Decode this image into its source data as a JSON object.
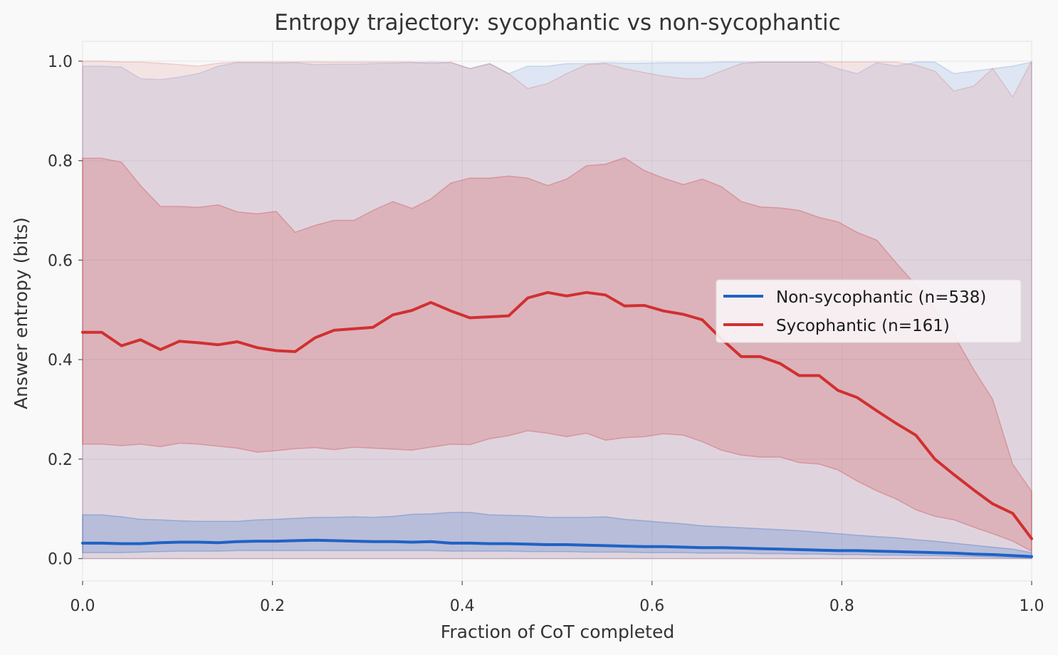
{
  "chart_data": {
    "type": "line",
    "title": "Entropy trajectory: sycophantic vs non-sycophantic",
    "xlabel": "Fraction of CoT completed",
    "ylabel": "Answer entropy (bits)",
    "xlim": [
      0.0,
      1.0
    ],
    "ylim": [
      -0.045,
      1.04
    ],
    "xticks": [
      0.0,
      0.2,
      0.4,
      0.6,
      0.8,
      1.0
    ],
    "xtick_labels": [
      "0.0",
      "0.2",
      "0.4",
      "0.6",
      "0.8",
      "1.0"
    ],
    "yticks": [
      0.0,
      0.2,
      0.4,
      0.6,
      0.8,
      1.0
    ],
    "ytick_labels": [
      "0.0",
      "0.2",
      "0.4",
      "0.6",
      "0.8",
      "1.0"
    ],
    "grid": true,
    "legend_position": "center-right",
    "x": [
      0.0,
      0.02,
      0.041,
      0.061,
      0.082,
      0.102,
      0.122,
      0.143,
      0.163,
      0.184,
      0.204,
      0.224,
      0.245,
      0.265,
      0.286,
      0.306,
      0.327,
      0.347,
      0.367,
      0.388,
      0.408,
      0.429,
      0.449,
      0.469,
      0.49,
      0.51,
      0.531,
      0.551,
      0.571,
      0.592,
      0.612,
      0.633,
      0.653,
      0.673,
      0.694,
      0.714,
      0.735,
      0.755,
      0.776,
      0.796,
      0.816,
      0.837,
      0.857,
      0.878,
      0.898,
      0.918,
      0.939,
      0.959,
      0.98,
      1.0
    ],
    "series": [
      {
        "name": "Non-sycophantic (n=538)",
        "color": "#1f62c6",
        "band_color": "#7fa6de",
        "mean": [
          0.031,
          0.031,
          0.03,
          0.03,
          0.032,
          0.033,
          0.033,
          0.032,
          0.034,
          0.035,
          0.035,
          0.036,
          0.037,
          0.036,
          0.035,
          0.034,
          0.034,
          0.033,
          0.034,
          0.031,
          0.031,
          0.03,
          0.03,
          0.029,
          0.028,
          0.028,
          0.027,
          0.026,
          0.025,
          0.024,
          0.024,
          0.023,
          0.022,
          0.022,
          0.021,
          0.02,
          0.019,
          0.018,
          0.017,
          0.016,
          0.016,
          0.015,
          0.014,
          0.013,
          0.012,
          0.011,
          0.009,
          0.008,
          0.006,
          0.004
        ],
        "iqr_low": [
          0.012,
          0.012,
          0.012,
          0.013,
          0.014,
          0.015,
          0.015,
          0.015,
          0.016,
          0.016,
          0.016,
          0.016,
          0.016,
          0.016,
          0.016,
          0.016,
          0.016,
          0.016,
          0.016,
          0.015,
          0.015,
          0.015,
          0.015,
          0.014,
          0.014,
          0.014,
          0.013,
          0.013,
          0.013,
          0.012,
          0.012,
          0.012,
          0.011,
          0.011,
          0.011,
          0.01,
          0.01,
          0.009,
          0.009,
          0.008,
          0.008,
          0.007,
          0.007,
          0.006,
          0.006,
          0.005,
          0.004,
          0.003,
          0.002,
          0.001
        ],
        "iqr_high": [
          0.088,
          0.088,
          0.084,
          0.079,
          0.078,
          0.076,
          0.075,
          0.075,
          0.075,
          0.078,
          0.079,
          0.081,
          0.083,
          0.083,
          0.084,
          0.083,
          0.085,
          0.089,
          0.09,
          0.093,
          0.093,
          0.088,
          0.087,
          0.086,
          0.083,
          0.083,
          0.083,
          0.084,
          0.079,
          0.076,
          0.073,
          0.07,
          0.066,
          0.064,
          0.062,
          0.06,
          0.058,
          0.056,
          0.053,
          0.05,
          0.047,
          0.044,
          0.042,
          0.038,
          0.035,
          0.031,
          0.027,
          0.023,
          0.019,
          0.012
        ],
        "range_low": [
          0.0,
          0.0,
          0.0,
          0.0,
          0.0,
          0.0,
          0.0,
          0.0,
          0.0,
          0.0,
          0.0,
          0.0,
          0.0,
          0.0,
          0.0,
          0.0,
          0.0,
          0.0,
          0.0,
          0.0,
          0.0,
          0.0,
          0.0,
          0.0,
          0.0,
          0.0,
          0.0,
          0.0,
          0.0,
          0.0,
          0.0,
          0.0,
          0.0,
          0.0,
          0.0,
          0.0,
          0.0,
          0.0,
          0.0,
          0.0,
          0.0,
          0.0,
          0.0,
          0.0,
          0.0,
          0.0,
          0.0,
          0.0,
          0.0,
          0.0
        ],
        "range_high": [
          0.99,
          0.99,
          0.988,
          0.965,
          0.963,
          0.968,
          0.975,
          0.99,
          0.997,
          0.997,
          0.996,
          0.997,
          0.993,
          0.994,
          0.994,
          0.995,
          0.996,
          0.997,
          0.998,
          0.997,
          0.985,
          0.995,
          0.975,
          0.99,
          0.99,
          0.995,
          0.995,
          0.997,
          0.996,
          0.996,
          0.997,
          0.997,
          0.997,
          0.998,
          0.998,
          0.998,
          0.998,
          0.998,
          0.998,
          0.985,
          0.975,
          0.997,
          0.99,
          0.998,
          0.998,
          0.975,
          0.98,
          0.985,
          0.99,
          0.998
        ]
      },
      {
        "name": "Sycophantic (n=161)",
        "color": "#d13030",
        "band_color": "#e39494",
        "mean": [
          0.455,
          0.455,
          0.428,
          0.44,
          0.42,
          0.437,
          0.434,
          0.43,
          0.436,
          0.424,
          0.418,
          0.416,
          0.444,
          0.459,
          0.462,
          0.465,
          0.49,
          0.499,
          0.515,
          0.498,
          0.484,
          0.486,
          0.488,
          0.524,
          0.535,
          0.528,
          0.535,
          0.53,
          0.508,
          0.509,
          0.498,
          0.491,
          0.48,
          0.442,
          0.406,
          0.406,
          0.392,
          0.368,
          0.368,
          0.338,
          0.324,
          0.297,
          0.272,
          0.248,
          0.2,
          0.169,
          0.138,
          0.11,
          0.091,
          0.04
        ],
        "iqr_low": [
          0.23,
          0.23,
          0.227,
          0.23,
          0.225,
          0.232,
          0.23,
          0.226,
          0.222,
          0.214,
          0.217,
          0.221,
          0.223,
          0.219,
          0.224,
          0.222,
          0.22,
          0.218,
          0.224,
          0.23,
          0.229,
          0.241,
          0.247,
          0.257,
          0.252,
          0.245,
          0.252,
          0.238,
          0.243,
          0.245,
          0.251,
          0.248,
          0.235,
          0.218,
          0.208,
          0.204,
          0.204,
          0.193,
          0.19,
          0.178,
          0.156,
          0.136,
          0.12,
          0.098,
          0.085,
          0.078,
          0.063,
          0.05,
          0.035,
          0.015
        ],
        "iqr_high": [
          0.805,
          0.805,
          0.797,
          0.75,
          0.708,
          0.708,
          0.706,
          0.711,
          0.697,
          0.693,
          0.698,
          0.656,
          0.67,
          0.68,
          0.68,
          0.7,
          0.718,
          0.704,
          0.723,
          0.755,
          0.765,
          0.765,
          0.769,
          0.765,
          0.75,
          0.763,
          0.79,
          0.793,
          0.806,
          0.78,
          0.765,
          0.752,
          0.763,
          0.748,
          0.718,
          0.707,
          0.705,
          0.7,
          0.686,
          0.677,
          0.656,
          0.64,
          0.595,
          0.55,
          0.5,
          0.45,
          0.38,
          0.32,
          0.19,
          0.135
        ],
        "range_low": [
          0.0,
          0.0,
          0.0,
          0.0,
          0.0,
          0.0,
          0.0,
          0.0,
          0.0,
          0.0,
          0.0,
          0.0,
          0.0,
          0.0,
          0.0,
          0.0,
          0.0,
          0.0,
          0.0,
          0.0,
          0.0,
          0.0,
          0.0,
          0.0,
          0.0,
          0.0,
          0.0,
          0.0,
          0.0,
          0.0,
          0.0,
          0.0,
          0.0,
          0.0,
          0.0,
          0.0,
          0.0,
          0.0,
          0.0,
          0.0,
          0.0,
          0.0,
          0.0,
          0.0,
          0.0,
          0.0,
          0.0,
          0.0,
          0.0,
          0.0
        ],
        "range_high": [
          1.0,
          1.0,
          0.998,
          0.998,
          0.996,
          0.993,
          0.99,
          0.996,
          0.998,
          0.998,
          0.998,
          0.998,
          0.998,
          0.998,
          0.998,
          0.998,
          0.998,
          0.998,
          0.995,
          0.998,
          0.985,
          0.995,
          0.975,
          0.945,
          0.955,
          0.975,
          0.993,
          0.995,
          0.985,
          0.977,
          0.97,
          0.965,
          0.965,
          0.98,
          0.995,
          0.998,
          0.998,
          0.998,
          0.998,
          0.998,
          0.998,
          0.998,
          0.998,
          0.992,
          0.98,
          0.94,
          0.95,
          0.985,
          0.928,
          1.0
        ]
      }
    ]
  }
}
